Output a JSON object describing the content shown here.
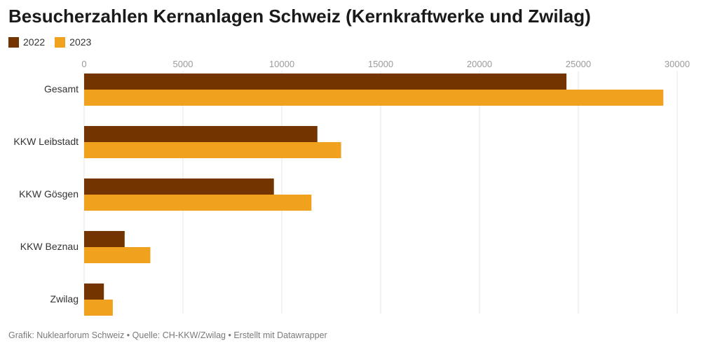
{
  "colors": {
    "series_2022": "#733400",
    "series_2023": "#f0a21e",
    "gridline": "#e6e6e6",
    "tick_text": "#9a9a9a",
    "category_text": "#333333"
  },
  "chart_data": {
    "type": "bar",
    "orientation": "horizontal",
    "title": "Besucherzahlen Kernanlagen Schweiz (Kernkraftwerke und Zwilag)",
    "xlabel": "",
    "ylabel": "",
    "categories": [
      "Gesamt",
      "KKW Leibstadt",
      "KKW Gösgen",
      "KKW Beznau",
      "Zwilag"
    ],
    "series": [
      {
        "name": "2022",
        "values": [
          24400,
          11800,
          9600,
          2050,
          1000
        ]
      },
      {
        "name": "2023",
        "values": [
          29300,
          13000,
          11500,
          3350,
          1450
        ]
      }
    ],
    "xlim": [
      0,
      30000
    ],
    "ticks": [
      0,
      5000,
      10000,
      15000,
      20000,
      25000,
      30000
    ],
    "tick_labels": [
      "0",
      "5000",
      "10000",
      "15000",
      "20000",
      "25000",
      "30000"
    ],
    "legend_position": "top-left",
    "grid": true
  },
  "footer": {
    "text": "Grafik: Nuklearforum Schweiz • Quelle: CH-KKW/Zwilag • Erstellt mit Datawrapper"
  }
}
